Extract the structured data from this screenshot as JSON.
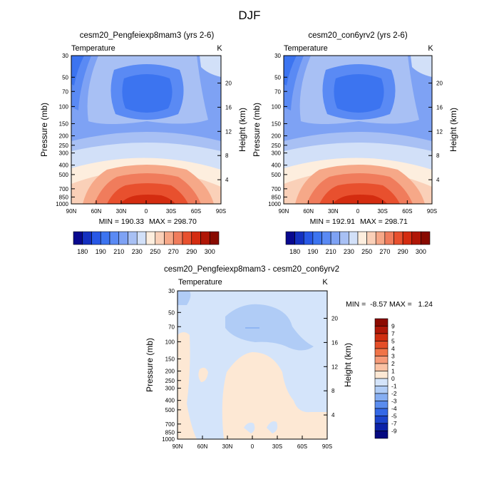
{
  "figure": {
    "title": "DJF"
  },
  "chart_data": [
    {
      "type": "heatmap",
      "title": "cesm20_Pengfeiexp8mam3 (yrs 2-6)",
      "left_label": "Temperature",
      "right_label": "K",
      "xlabel": "",
      "ylabel": "Pressure (mb)",
      "y2label": "Height (km)",
      "x_ticks": [
        "90N",
        "60N",
        "30N",
        "0",
        "30S",
        "60S",
        "90S"
      ],
      "y_ticks": [
        "30",
        "50",
        "70",
        "100",
        "150",
        "200",
        "250",
        "300",
        "400",
        "500",
        "700",
        "850",
        "1000"
      ],
      "y2_ticks": [
        "4",
        "8",
        "12",
        "16",
        "20"
      ],
      "ylim": [
        1000,
        30
      ],
      "xlim": [
        90,
        -90
      ],
      "min_label": "MIN = 190.33",
      "max_label": "MAX = 298.70",
      "colorbar_labels": [
        "180",
        "190",
        "210",
        "230",
        "250",
        "270",
        "290",
        "300"
      ],
      "colorbar_colors": [
        "#08088e",
        "#1430c0",
        "#2858e6",
        "#3c74f0",
        "#5a8af4",
        "#7ea2f4",
        "#a8c0f4",
        "#d2e0f8",
        "#fdeede",
        "#fad0b8",
        "#f6a888",
        "#f07c5c",
        "#e8502e",
        "#d42c10",
        "#b01606",
        "#880a00"
      ]
    },
    {
      "type": "heatmap",
      "title": "cesm20_con6yrv2 (yrs 2-6)",
      "left_label": "Temperature",
      "right_label": "K",
      "xlabel": "",
      "ylabel": "Pressure (mb)",
      "y2label": "Height (km)",
      "x_ticks": [
        "90N",
        "60N",
        "30N",
        "0",
        "30S",
        "60S",
        "90S"
      ],
      "y_ticks": [
        "30",
        "50",
        "70",
        "100",
        "150",
        "200",
        "250",
        "300",
        "400",
        "500",
        "700",
        "850",
        "1000"
      ],
      "y2_ticks": [
        "4",
        "8",
        "12",
        "16",
        "20"
      ],
      "ylim": [
        1000,
        30
      ],
      "xlim": [
        90,
        -90
      ],
      "min_label": "MIN = 192.91",
      "max_label": "MAX = 298.71",
      "colorbar_labels": [
        "180",
        "190",
        "210",
        "230",
        "250",
        "270",
        "290",
        "300"
      ],
      "colorbar_colors": [
        "#08088e",
        "#1430c0",
        "#2858e6",
        "#3c74f0",
        "#5a8af4",
        "#7ea2f4",
        "#a8c0f4",
        "#d2e0f8",
        "#fdeede",
        "#fad0b8",
        "#f6a888",
        "#f07c5c",
        "#e8502e",
        "#d42c10",
        "#b01606",
        "#880a00"
      ]
    },
    {
      "type": "heatmap",
      "title": "cesm20_Pengfeiexp8mam3 - cesm20_con6yrv2",
      "left_label": "Temperature",
      "right_label": "K",
      "xlabel": "",
      "ylabel": "Pressure (mb)",
      "y2label": "Height (km)",
      "x_ticks": [
        "90N",
        "60N",
        "30N",
        "0",
        "30S",
        "60S",
        "90S"
      ],
      "y_ticks": [
        "30",
        "50",
        "70",
        "100",
        "150",
        "200",
        "250",
        "300",
        "400",
        "500",
        "700",
        "850",
        "1000"
      ],
      "y2_ticks": [
        "4",
        "8",
        "12",
        "16",
        "20"
      ],
      "ylim": [
        1000,
        30
      ],
      "xlim": [
        90,
        -90
      ],
      "min_label": "MIN =  -8.57",
      "max_label": "MAX =   1.24",
      "colorbar_labels": [
        "9",
        "7",
        "5",
        "4",
        "3",
        "2",
        "1",
        "0",
        "-1",
        "-2",
        "-3",
        "-4",
        "-5",
        "-7",
        "-9"
      ],
      "colorbar_colors": [
        "#8c0a00",
        "#b01808",
        "#d02e10",
        "#e44e28",
        "#f07448",
        "#f69a78",
        "#fac2a4",
        "#fde8d4",
        "#d4e4fa",
        "#b0ccf6",
        "#86aef2",
        "#5a8cee",
        "#3468e6",
        "#1c44cc",
        "#0c22a8",
        "#060a80"
      ]
    }
  ]
}
